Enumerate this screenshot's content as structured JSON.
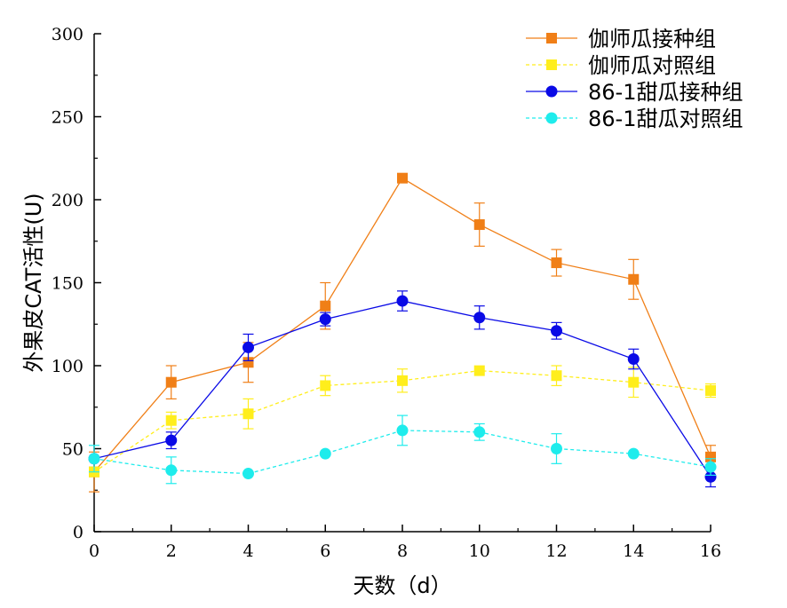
{
  "chart_data": {
    "type": "line",
    "xlabel": "天数（d）",
    "ylabel": "外果皮CAT活性(U)",
    "x": [
      0,
      2,
      4,
      6,
      8,
      10,
      12,
      14,
      16
    ],
    "x_ticks": [
      "0",
      "2",
      "4",
      "6",
      "8",
      "10",
      "12",
      "14",
      "16"
    ],
    "y_ticks": [
      "0",
      "50",
      "100",
      "150",
      "200",
      "250",
      "300"
    ],
    "xlim": [
      0,
      16
    ],
    "ylim": [
      0,
      300
    ],
    "grid": false,
    "legend_position": "top-right",
    "series": [
      {
        "name": "伽师瓜接种组",
        "color": "#F07F17",
        "marker": "square",
        "line_style": "solid",
        "values": [
          36,
          90,
          102,
          136,
          213,
          185,
          162,
          152,
          45
        ],
        "errors": [
          12,
          10,
          12,
          14,
          0,
          13,
          8,
          12,
          7
        ]
      },
      {
        "name": "伽师瓜对照组",
        "color": "#FFEE1C",
        "marker": "square",
        "line_style": "dashed",
        "values": [
          36,
          67,
          71,
          88,
          91,
          97,
          94,
          90,
          85
        ],
        "errors": [
          0,
          5,
          9,
          6,
          7,
          0,
          6,
          9,
          4
        ]
      },
      {
        "name": "86-1甜瓜接种组",
        "color": "#0A0AE6",
        "marker": "circle",
        "line_style": "solid",
        "values": [
          44,
          55,
          111,
          128,
          139,
          129,
          121,
          104,
          33
        ],
        "errors": [
          0,
          5,
          8,
          4,
          6,
          7,
          5,
          6,
          6
        ]
      },
      {
        "name": "86-1甜瓜对照组",
        "color": "#1EECEC",
        "marker": "circle",
        "line_style": "dashed",
        "values": [
          44,
          37,
          35,
          47,
          61,
          60,
          50,
          47,
          39
        ],
        "errors": [
          8,
          8,
          0,
          0,
          9,
          5,
          9,
          0,
          5
        ]
      }
    ]
  }
}
